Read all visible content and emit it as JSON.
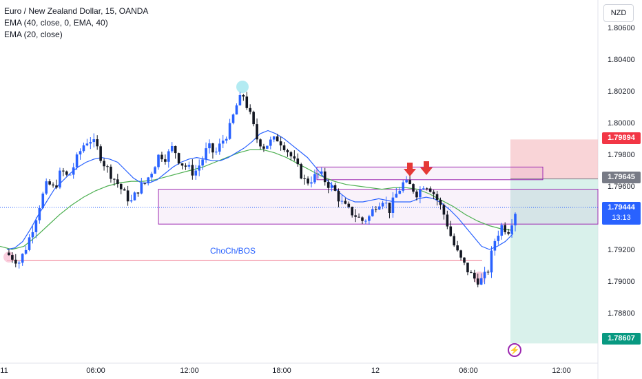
{
  "legend": {
    "title": "Euro / New Zealand Dollar, 15, OANDA",
    "ema1": "EMA (40, close, 0, EMA, 40)",
    "ema2": "EMA (20, close)"
  },
  "currency": "NZD",
  "annotation": "ChoCh/BOS",
  "price_tags": {
    "stop": "1.79894",
    "level": "1.79645",
    "current": "1.79444",
    "countdown": "13:13",
    "target": "1.78607"
  },
  "colors": {
    "up": "#2962ff",
    "down": "#131722",
    "ema_fast": "#2962ff",
    "ema_slow": "#4caf50",
    "zone_border": "#9c27b0",
    "stop_zone": "#f7c5c9",
    "target_zone": "#cfeee6",
    "stop_tag": "#f23645",
    "target_tag": "#089981",
    "current_tag": "#2962ff",
    "level_tag": "#787b86",
    "arrow": "#e53935"
  },
  "chart_data": {
    "type": "candlestick",
    "symbol": "Euro / New Zealand Dollar, 15, OANDA",
    "y_axis": {
      "min": 1.7868,
      "max": 1.807,
      "ticks": [
        "1.80600",
        "1.80400",
        "1.80200",
        "1.80000",
        "1.79800",
        "1.79600",
        "1.79200",
        "1.79000",
        "1.78800"
      ]
    },
    "x_ticks": [
      "11",
      "06:00",
      "12:00",
      "18:00",
      "12",
      "06:00",
      "12:00"
    ],
    "close_path": [
      1.7918,
      1.7915,
      1.7912,
      1.7922,
      1.7935,
      1.795,
      1.7962,
      1.7958,
      1.797,
      1.7965,
      1.7975,
      1.7985,
      1.799,
      1.7985,
      1.7975,
      1.7968,
      1.7962,
      1.7955,
      1.795,
      1.7958,
      1.7962,
      1.797,
      1.798,
      1.7978,
      1.7985,
      1.7975,
      1.7972,
      1.7968,
      1.7975,
      1.7985,
      1.798,
      1.7988,
      1.7995,
      1.801,
      1.8018,
      1.8005,
      1.799,
      1.7985,
      1.7988,
      1.799,
      1.7985,
      1.7978,
      1.797,
      1.7962,
      1.7965,
      1.7968,
      1.7962,
      1.7958,
      1.795,
      1.7945,
      1.7942,
      1.7938,
      1.794,
      1.7948,
      1.7952,
      1.7945,
      1.7955,
      1.7962,
      1.796,
      1.7955,
      1.7962,
      1.7958,
      1.795,
      1.794,
      1.7925,
      1.7915,
      1.7908,
      1.7902,
      1.79,
      1.7905,
      1.7925,
      1.7935,
      1.7932,
      1.7944
    ],
    "ema_fast": [
      1.792,
      1.7921,
      1.7925,
      1.7933,
      1.7942,
      1.795,
      1.7958,
      1.7963,
      1.7968,
      1.7972,
      1.7975,
      1.7977,
      1.7978,
      1.7977,
      1.7975,
      1.797,
      1.7965,
      1.7962,
      1.7962,
      1.7964,
      1.7968,
      1.7972,
      1.7975,
      1.7977,
      1.7978,
      1.7977,
      1.7976,
      1.7976,
      1.7978,
      1.7981,
      1.7984,
      1.7988,
      1.7993,
      1.7995,
      1.7993,
      1.799,
      1.7986,
      1.7982,
      1.7978,
      1.7972,
      1.7966,
      1.7961,
      1.7956,
      1.7952,
      1.795,
      1.795,
      1.7951,
      1.7952,
      1.7951,
      1.795,
      1.795,
      1.795,
      1.7952,
      1.7953,
      1.7952,
      1.7949,
      1.7945,
      1.794,
      1.7934,
      1.7928,
      1.7922,
      1.792,
      1.7922,
      1.7925,
      1.793
    ],
    "ema_slow": [
      1.7922,
      1.792,
      1.7922,
      1.7928,
      1.7935,
      1.7942,
      1.7948,
      1.7953,
      1.7957,
      1.796,
      1.7962,
      1.7963,
      1.7963,
      1.7964,
      1.7966,
      1.7968,
      1.797,
      1.7972,
      1.7975,
      1.7978,
      1.7981,
      1.7983,
      1.7983,
      1.7981,
      1.7978,
      1.7974,
      1.797,
      1.7966,
      1.7963,
      1.7961,
      1.796,
      1.7959,
      1.7958,
      1.7959,
      1.7959,
      1.7958,
      1.7955,
      1.7951,
      1.7947,
      1.7942,
      1.7938,
      1.7935,
      1.7933,
      1.7932
    ],
    "zones": {
      "lower_box": [
        1.7958,
        1.7936
      ],
      "upper_box": [
        1.7972,
        1.7964
      ],
      "stop_zone": [
        1.79894,
        1.79645
      ],
      "target_zone": [
        1.79645,
        1.78607
      ],
      "choch_bos_level": 1.7913
    }
  }
}
